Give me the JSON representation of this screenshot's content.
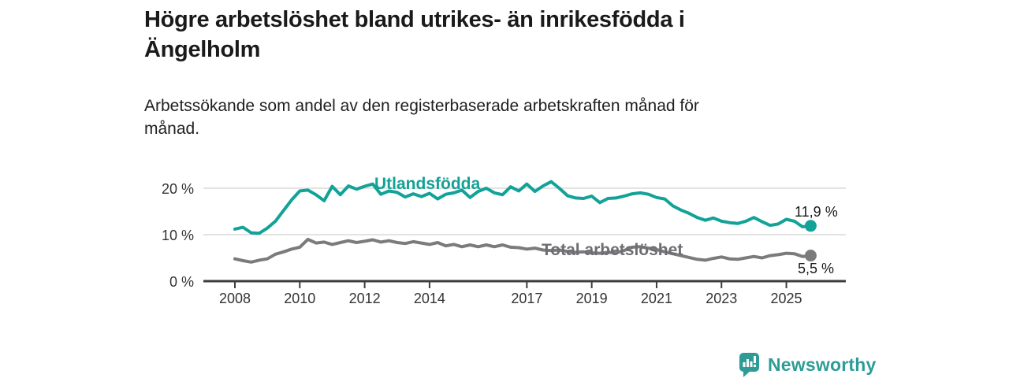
{
  "header": {
    "title_lines": [
      "Högre arbetslöshet bland utrikes- än inrikesfödda i",
      "Ängelholm"
    ],
    "subtitle_lines": [
      "Arbetssökande som andel av den registerbaserade arbetskraften månad för",
      "månad."
    ]
  },
  "footer": {
    "logo_text": "Newsworthy",
    "logo_color": "#2d9c96"
  },
  "chart_data": {
    "type": "line",
    "unit": "%",
    "x_start": 2008.0,
    "x_step_years": 0.25,
    "x_ticks": [
      {
        "t": 2008,
        "label": "2008"
      },
      {
        "t": 2010,
        "label": "2010"
      },
      {
        "t": 2012,
        "label": "2012"
      },
      {
        "t": 2014,
        "label": "2014"
      },
      {
        "t": 2017,
        "label": "2017"
      },
      {
        "t": 2019,
        "label": "2019"
      },
      {
        "t": 2021,
        "label": "2021"
      },
      {
        "t": 2023,
        "label": "2023"
      },
      {
        "t": 2025,
        "label": "2025"
      }
    ],
    "y_ticks": [
      {
        "v": 0,
        "label": "0 %"
      },
      {
        "v": 10,
        "label": "10 %"
      },
      {
        "v": 20,
        "label": "20 %"
      }
    ],
    "ylim": [
      0,
      22.5
    ],
    "grid": true,
    "colors": {
      "gridline": "#dadada",
      "axis": "#3d3d3d",
      "tick_text": "#333333"
    },
    "series": [
      {
        "name": "Utlandsfödda",
        "color": "#13a297",
        "end_label": "11,9 %",
        "end_value": 11.9,
        "values": [
          11.2,
          11.6,
          10.4,
          10.3,
          11.4,
          12.9,
          15.2,
          17.5,
          19.4,
          19.6,
          18.6,
          17.3,
          20.4,
          18.6,
          20.5,
          19.8,
          20.4,
          20.9,
          18.7,
          19.4,
          19.1,
          18.1,
          18.8,
          18.2,
          18.9,
          17.7,
          18.7,
          19.0,
          19.6,
          18.0,
          19.3,
          20.0,
          19.0,
          18.6,
          20.3,
          19.4,
          20.9,
          19.3,
          20.5,
          21.4,
          20.0,
          18.4,
          17.9,
          17.8,
          18.3,
          16.9,
          17.8,
          17.9,
          18.3,
          18.8,
          19.0,
          18.7,
          18.0,
          17.7,
          16.2,
          15.3,
          14.6,
          13.7,
          13.1,
          13.6,
          12.9,
          12.6,
          12.4,
          12.9,
          13.7,
          12.8,
          12.0,
          12.3,
          13.3,
          12.9,
          11.7,
          11.9
        ]
      },
      {
        "name": "Total arbetslöshet",
        "color": "#7b7b7e",
        "end_label": "5,5 %",
        "end_value": 5.5,
        "values": [
          4.8,
          4.4,
          4.1,
          4.5,
          4.8,
          5.8,
          6.3,
          6.9,
          7.3,
          9.0,
          8.2,
          8.4,
          7.9,
          8.3,
          8.7,
          8.3,
          8.6,
          8.9,
          8.4,
          8.7,
          8.3,
          8.1,
          8.5,
          8.2,
          7.9,
          8.3,
          7.6,
          7.9,
          7.4,
          7.8,
          7.4,
          7.8,
          7.4,
          7.8,
          7.3,
          7.2,
          6.9,
          7.1,
          6.7,
          6.6,
          6.7,
          6.4,
          6.2,
          6.3,
          6.1,
          6.0,
          6.2,
          6.1,
          6.6,
          7.3,
          7.4,
          7.1,
          6.8,
          6.3,
          5.9,
          5.5,
          5.1,
          4.7,
          4.5,
          4.9,
          5.2,
          4.8,
          4.7,
          5.0,
          5.3,
          5.0,
          5.5,
          5.7,
          6.0,
          5.9,
          5.3,
          5.5
        ]
      }
    ]
  }
}
